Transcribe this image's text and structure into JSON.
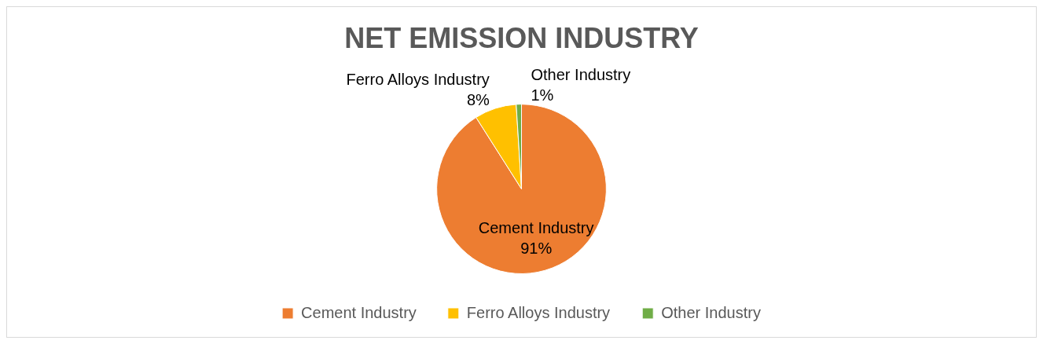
{
  "chart_data": {
    "type": "pie",
    "title": "NET EMISSION INDUSTRY",
    "categories": [
      "Cement Industry",
      "Ferro Alloys Industry",
      "Other Industry"
    ],
    "values": [
      91,
      8,
      1
    ],
    "value_labels": [
      "91%",
      "8%",
      "1%"
    ],
    "colors": [
      "#ed7d31",
      "#ffc000",
      "#70ad47"
    ],
    "legend": "bottom"
  }
}
